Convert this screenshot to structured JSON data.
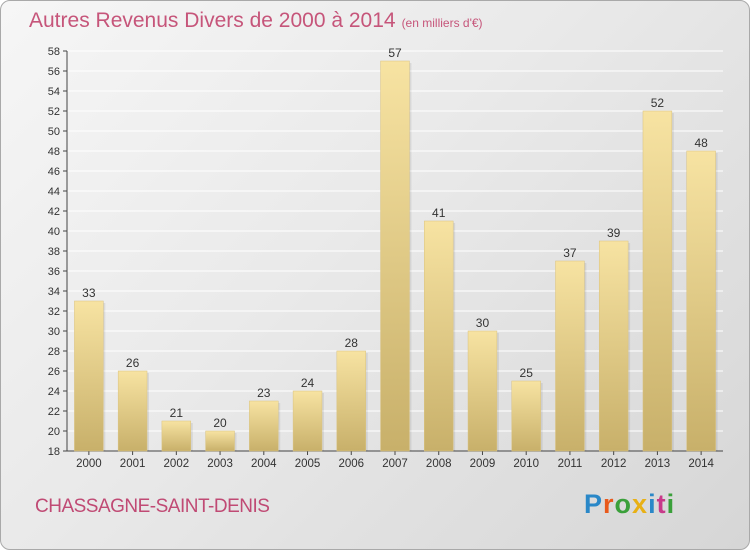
{
  "colors": {
    "title": "#c6557a",
    "bar_light": "#f7e3a2",
    "bar_dark": "#c8b06a",
    "grid": "#ffffff",
    "axis_text": "#333333"
  },
  "chart_data": {
    "type": "bar",
    "title": "Autres Revenus Divers de 2000 à 2014",
    "subtitle": "(en milliers d'€)",
    "xlabel": "",
    "ylabel": "",
    "categories": [
      "2000",
      "2001",
      "2002",
      "2003",
      "2004",
      "2005",
      "2006",
      "2007",
      "2008",
      "2009",
      "2010",
      "2011",
      "2012",
      "2013",
      "2014"
    ],
    "values": [
      33,
      26,
      21,
      20,
      23,
      24,
      28,
      57,
      41,
      30,
      25,
      37,
      39,
      52,
      48
    ],
    "ylim": [
      18,
      58
    ],
    "ytick_step": 2,
    "grid": true,
    "data_labels": true
  },
  "footer": {
    "commune": "CHASSAGNE-SAINT-DENIS",
    "logo": "Proxiti",
    "logo_colors": [
      "#2a88c8",
      "#e85a1c",
      "#3aa03a",
      "#e8b014",
      "#2a88c8",
      "#c83a8a",
      "#3aa03a"
    ]
  }
}
